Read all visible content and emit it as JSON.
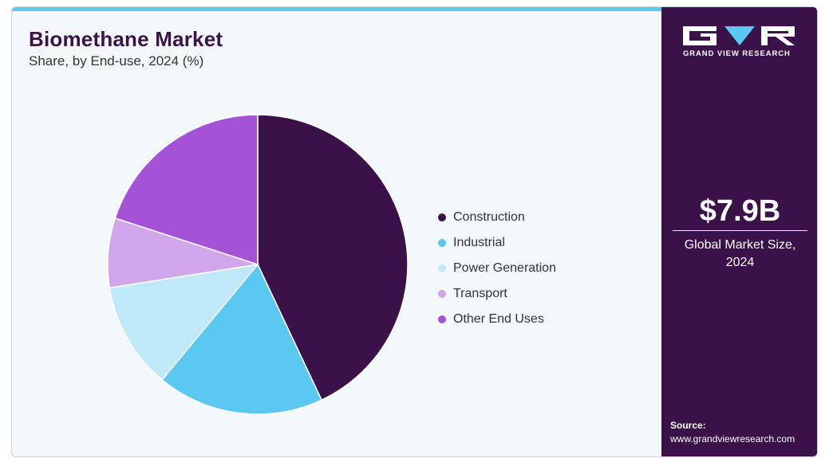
{
  "header": {
    "title": "Biomethane Market",
    "subtitle": "Share, by End-use, 2024 (%)"
  },
  "chart_data": {
    "type": "pie",
    "start_angle_deg": 0,
    "direction": "clockwise",
    "categories": [
      "Construction",
      "Industrial",
      "Power Generation",
      "Transport",
      "Other End Uses"
    ],
    "values": [
      43,
      18,
      11.5,
      7.5,
      20
    ],
    "colors": [
      "#3a1148",
      "#5bc8f2",
      "#bfe9f9",
      "#d1a6ea",
      "#a452d6"
    ],
    "slice_border_color": "#ffffff",
    "legend_position": "right"
  },
  "sidebar": {
    "logo_text": "GRAND VIEW RESEARCH",
    "market_size": "$7.9B",
    "market_size_label": "Global Market Size, 2024",
    "source_label": "Source:",
    "source_url": "www.grandviewresearch.com"
  }
}
